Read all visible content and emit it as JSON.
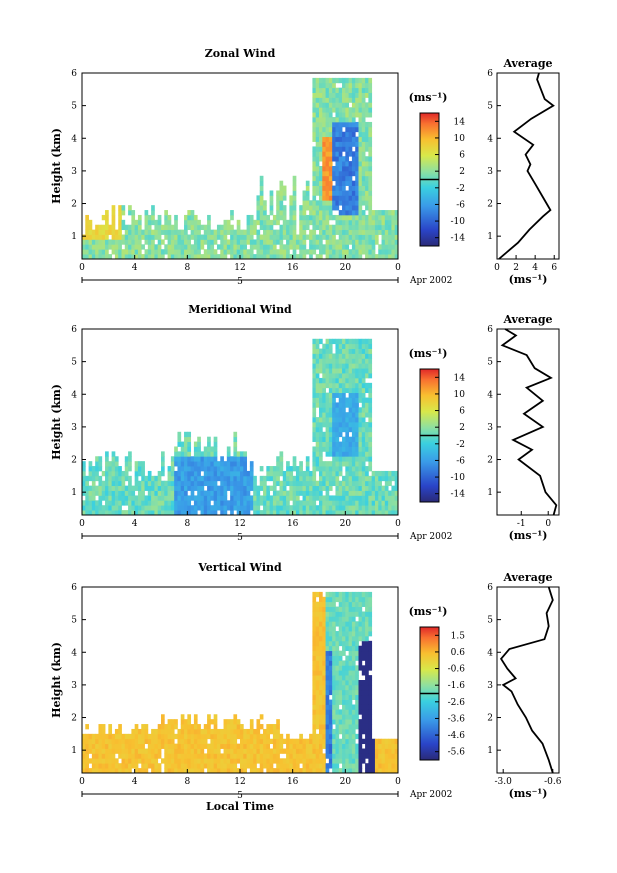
{
  "chart_data": [
    {
      "type": "heatmap",
      "title": "Zonal Wind",
      "ylabel": "Height (km)",
      "xlabel": "",
      "x_ticks": [
        "0",
        "4",
        "8",
        "12",
        "16",
        "20",
        "0"
      ],
      "y_ticks": [
        "1",
        "2",
        "3",
        "4",
        "5",
        "6"
      ],
      "xlim": [
        0,
        24
      ],
      "ylim": [
        0.3,
        6
      ],
      "day_label": "5",
      "month_label": "Apr 2002",
      "colorbar": {
        "unit": "(ms⁻¹)",
        "ticks": [
          "14",
          "10",
          "6",
          "2",
          "-2",
          "-6",
          "-10",
          "-14"
        ],
        "range": [
          -16,
          16
        ]
      },
      "average": {
        "title": "Average",
        "xlabel": "(ms⁻¹)",
        "x_ticks": [
          "0",
          "2",
          "4",
          "6"
        ],
        "xlim": [
          0,
          6.5
        ],
        "profile": [
          [
            0.3,
            0.2
          ],
          [
            0.5,
            1.0
          ],
          [
            0.8,
            2.2
          ],
          [
            1.2,
            3.4
          ],
          [
            1.6,
            4.8
          ],
          [
            1.8,
            5.6
          ],
          [
            2.2,
            4.8
          ],
          [
            2.6,
            4.0
          ],
          [
            3.0,
            3.2
          ],
          [
            3.2,
            3.5
          ],
          [
            3.5,
            3.0
          ],
          [
            3.8,
            3.8
          ],
          [
            4.2,
            1.8
          ],
          [
            4.6,
            3.6
          ],
          [
            5.0,
            5.9
          ],
          [
            5.2,
            5.0
          ],
          [
            5.5,
            4.6
          ],
          [
            5.8,
            4.2
          ],
          [
            6.0,
            4.4
          ]
        ]
      }
    },
    {
      "type": "heatmap",
      "title": "Meridional Wind",
      "ylabel": "Height (km)",
      "xlabel": "",
      "x_ticks": [
        "0",
        "4",
        "8",
        "12",
        "16",
        "20",
        "0"
      ],
      "y_ticks": [
        "1",
        "2",
        "3",
        "4",
        "5",
        "6"
      ],
      "xlim": [
        0,
        24
      ],
      "ylim": [
        0.3,
        6
      ],
      "day_label": "5",
      "month_label": "Apr 2002",
      "colorbar": {
        "unit": "(ms⁻¹)",
        "ticks": [
          "14",
          "10",
          "6",
          "2",
          "-2",
          "-6",
          "-10",
          "-14"
        ],
        "range": [
          -16,
          16
        ]
      },
      "average": {
        "title": "Average",
        "xlabel": "(ms⁻¹)",
        "x_ticks": [
          "-1",
          "0"
        ],
        "xlim": [
          -1.9,
          0.4
        ],
        "profile": [
          [
            0.3,
            0.2
          ],
          [
            0.6,
            0.3
          ],
          [
            1.0,
            -0.1
          ],
          [
            1.5,
            -0.3
          ],
          [
            2.0,
            -1.1
          ],
          [
            2.3,
            -0.6
          ],
          [
            2.6,
            -1.3
          ],
          [
            3.0,
            -0.2
          ],
          [
            3.4,
            -0.9
          ],
          [
            3.8,
            -0.2
          ],
          [
            4.2,
            -0.8
          ],
          [
            4.5,
            0.1
          ],
          [
            4.8,
            -0.5
          ],
          [
            5.2,
            -0.8
          ],
          [
            5.5,
            -1.7
          ],
          [
            5.8,
            -1.2
          ],
          [
            6.0,
            -1.6
          ]
        ]
      }
    },
    {
      "type": "heatmap",
      "title": "Vertical Wind",
      "ylabel": "Height (km)",
      "xlabel": "Local Time",
      "x_ticks": [
        "0",
        "4",
        "8",
        "12",
        "16",
        "20",
        "0"
      ],
      "y_ticks": [
        "1",
        "2",
        "3",
        "4",
        "5",
        "6"
      ],
      "xlim": [
        0,
        24
      ],
      "ylim": [
        0.3,
        6
      ],
      "day_label": "5",
      "month_label": "Apr 2002",
      "colorbar": {
        "unit": "(ms⁻¹)",
        "ticks": [
          "1.5",
          "0.6",
          "-0.6",
          "-1.6",
          "-2.6",
          "-3.6",
          "-4.6",
          "-5.6"
        ],
        "range": [
          -6.0,
          2.0
        ]
      },
      "average": {
        "title": "Average",
        "xlabel": "(ms⁻¹)",
        "x_ticks": [
          "-3.0",
          "-0.6"
        ],
        "xlim": [
          -3.3,
          -0.3
        ],
        "profile": [
          [
            0.3,
            -0.6
          ],
          [
            0.7,
            -0.8
          ],
          [
            1.2,
            -1.1
          ],
          [
            1.6,
            -1.6
          ],
          [
            2.0,
            -1.9
          ],
          [
            2.4,
            -2.3
          ],
          [
            2.8,
            -2.6
          ],
          [
            3.0,
            -3.0
          ],
          [
            3.2,
            -2.4
          ],
          [
            3.5,
            -2.8
          ],
          [
            3.8,
            -3.1
          ],
          [
            4.1,
            -2.7
          ],
          [
            4.4,
            -1.0
          ],
          [
            4.8,
            -0.8
          ],
          [
            5.2,
            -0.9
          ],
          [
            5.6,
            -0.6
          ],
          [
            6.0,
            -0.8
          ]
        ]
      }
    }
  ]
}
